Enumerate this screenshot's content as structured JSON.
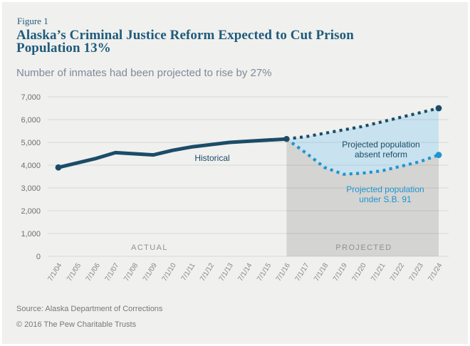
{
  "header": {
    "figure_label": "Figure 1",
    "title_lines": [
      "Alaska’s Criminal Justice Reform Expected to Cut Prison",
      "Population 13%"
    ],
    "subtitle": "Number of inmates had been projected to rise by 27%"
  },
  "chart_data": {
    "type": "line",
    "title": "Alaska’s Criminal Justice Reform Expected to Cut Prison Population 13%",
    "subtitle": "Number of inmates had been projected to rise by 27%",
    "categories": [
      "7/1/04",
      "7/1/05",
      "7/1/06",
      "7/1/07",
      "7/1/08",
      "7/1/09",
      "7/1/10",
      "7/1/11",
      "7/1/12",
      "7/1/13",
      "7/1/14",
      "7/1/15",
      "7/1/16",
      "7/1/17",
      "7/1/18",
      "7/1/19",
      "7/1/20",
      "7/1/21",
      "7/1/22",
      "7/1/23",
      "7/1/24"
    ],
    "ylim": [
      0,
      7000
    ],
    "ytick_step": 1000,
    "yticks": [
      "0",
      "1,000",
      "2,000",
      "3,000",
      "4,000",
      "5,000",
      "6,000",
      "7,000"
    ],
    "grid": "horizontal",
    "projection_start_category": "7/1/16",
    "series": [
      {
        "key": "historical",
        "name": "Historical",
        "style": "solid",
        "color": "#1b4c67",
        "start_index": 0,
        "values": [
          3900,
          4100,
          4300,
          4550,
          4500,
          4450,
          4650,
          4800,
          4900,
          5000,
          5050,
          5100,
          5150
        ]
      },
      {
        "key": "absent",
        "name": "Projected population absent reform",
        "style": "dotted",
        "color": "#1b4c67",
        "start_index": 12,
        "values": [
          5150,
          5250,
          5400,
          5550,
          5700,
          5900,
          6100,
          6300,
          6500
        ]
      },
      {
        "key": "sb91",
        "name": "Projected population under S.B. 91",
        "style": "dotted",
        "color": "#1e95cf",
        "start_index": 12,
        "values": [
          5150,
          4550,
          3900,
          3600,
          3650,
          3750,
          3950,
          4150,
          4450
        ]
      }
    ],
    "region_labels": {
      "actual": "ACTUAL",
      "projected": "PROJECTED"
    },
    "annotations": {
      "historical": "Historical",
      "absent_line1": "Projected population",
      "absent_line2": "absent reform",
      "sb91_line1": "Projected population",
      "sb91_line2": "under S.B. 91"
    },
    "colors": {
      "navy": "#1b4c67",
      "cyan": "#1e95cf",
      "blue_fill": "#c8e2ef",
      "gray_fill": "#d4d4d2",
      "background": "#f0f0ee",
      "gridline": "#d9d9d7"
    }
  },
  "footer": {
    "source": "Source: Alaska Department of Corrections",
    "copyright": "© 2016 The Pew Charitable Trusts"
  }
}
